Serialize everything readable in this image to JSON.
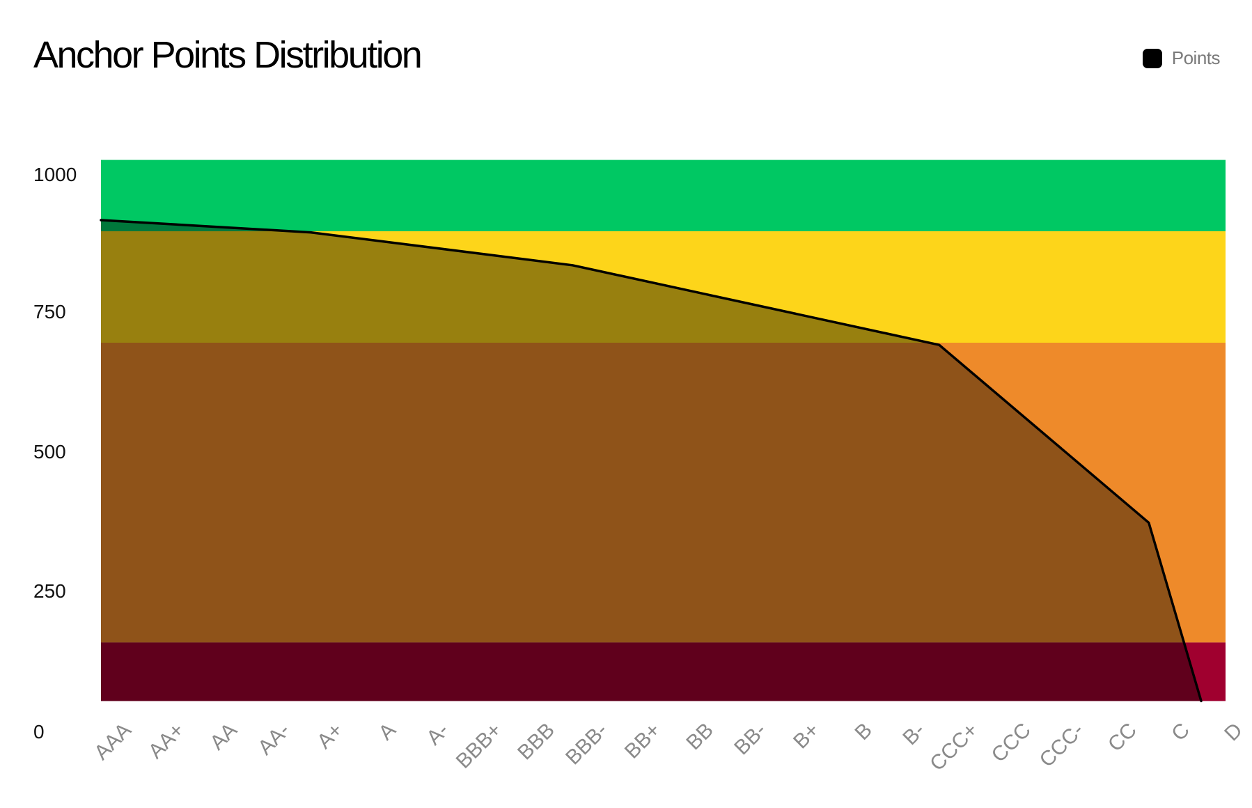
{
  "chart_data": {
    "type": "area",
    "title": "Anchor Points Distribution",
    "xlabel": "",
    "ylabel": "",
    "ylim": [
      0,
      1000
    ],
    "yticks": [
      0,
      250,
      500,
      750,
      1000
    ],
    "grid": false,
    "legend_position": "top-right",
    "categories": [
      "AAA",
      "AA+",
      "AA",
      "AA-",
      "A+",
      "A",
      "A-",
      "BBB+",
      "BBB",
      "BBB-",
      "BB+",
      "BB",
      "BB-",
      "B+",
      "B",
      "B-",
      "CCC+",
      "CCC",
      "CCC-",
      "CC",
      "C",
      "D"
    ],
    "series": [
      {
        "name": "Points",
        "color": "#000000",
        "points": [
          {
            "x": "AAA",
            "y": 905
          },
          {
            "x": "A+",
            "y": 883
          },
          {
            "x": "BBB-",
            "y": 824
          },
          {
            "x": "CCC+",
            "y": 681
          },
          {
            "x": "C",
            "y": 362
          },
          {
            "x": "D",
            "y": 42
          }
        ]
      }
    ],
    "bands": [
      {
        "from": 885,
        "to": 1013,
        "color": "#00c863"
      },
      {
        "from": 685,
        "to": 885,
        "color": "#fdd51a"
      },
      {
        "from": 147,
        "to": 685,
        "color": "#ee8a2a"
      },
      {
        "from": 42,
        "to": 147,
        "color": "#a0002f"
      }
    ]
  }
}
